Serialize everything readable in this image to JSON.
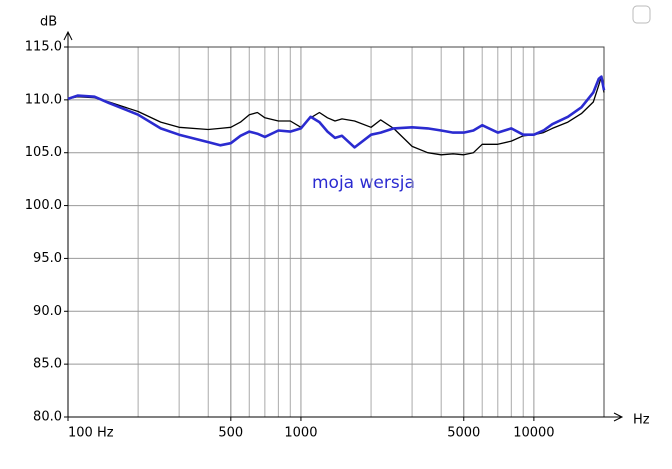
{
  "chart_data": {
    "type": "line",
    "y_label": "dB",
    "x_label": "Hz",
    "annotation": "moja wersja",
    "x_scale": "log",
    "grid": true,
    "xlim": [
      100,
      20000
    ],
    "ylim": [
      80,
      115
    ],
    "xticks": [
      {
        "value": 100,
        "label": "100 Hz"
      },
      500,
      1000,
      5000,
      10000
    ],
    "yticks": [
      {
        "value": 80,
        "label": "80.0"
      },
      {
        "value": 85,
        "label": "85.0"
      },
      {
        "value": 90,
        "label": "90.0"
      },
      {
        "value": 95,
        "label": "95.0"
      },
      {
        "value": 100,
        "label": "100.0"
      },
      {
        "value": 105,
        "label": "105.0"
      },
      {
        "value": 110,
        "label": "110.0"
      },
      {
        "value": 115,
        "label": "115.0"
      }
    ],
    "x": [
      100,
      110,
      130,
      150,
      200,
      250,
      300,
      400,
      450,
      500,
      550,
      600,
      650,
      700,
      800,
      900,
      1000,
      1100,
      1200,
      1300,
      1400,
      1500,
      1700,
      2000,
      2200,
      2500,
      3000,
      3500,
      4000,
      4500,
      5000,
      5500,
      6000,
      7000,
      8000,
      9000,
      10000,
      11000,
      12000,
      14000,
      16000,
      18000,
      19000,
      19500,
      20000
    ],
    "series": [
      {
        "color": "#000000",
        "width": 1.3,
        "values": [
          110.1,
          110.3,
          110.2,
          109.8,
          108.9,
          107.9,
          107.4,
          107.2,
          107.3,
          107.4,
          107.9,
          108.6,
          108.8,
          108.3,
          108.0,
          108.0,
          107.4,
          108.3,
          108.8,
          108.3,
          108.0,
          108.2,
          108.0,
          107.4,
          108.1,
          107.3,
          105.6,
          105.0,
          104.8,
          104.9,
          104.8,
          105.0,
          105.8,
          105.8,
          106.1,
          106.6,
          106.7,
          106.9,
          107.3,
          107.9,
          108.7,
          109.8,
          111.4,
          112.2,
          110.7
        ]
      },
      {
        "color": "#2b2bd0",
        "width": 2.6,
        "values": [
          110.1,
          110.4,
          110.3,
          109.7,
          108.6,
          107.3,
          106.7,
          106.0,
          105.7,
          105.9,
          106.6,
          107.0,
          106.8,
          106.5,
          107.1,
          107.0,
          107.3,
          108.4,
          107.9,
          107.0,
          106.4,
          106.6,
          105.5,
          106.7,
          106.9,
          107.3,
          107.4,
          107.3,
          107.1,
          106.9,
          106.9,
          107.1,
          107.6,
          106.9,
          107.3,
          106.7,
          106.7,
          107.1,
          107.7,
          108.4,
          109.3,
          110.7,
          112.0,
          112.2,
          110.9
        ]
      }
    ]
  }
}
